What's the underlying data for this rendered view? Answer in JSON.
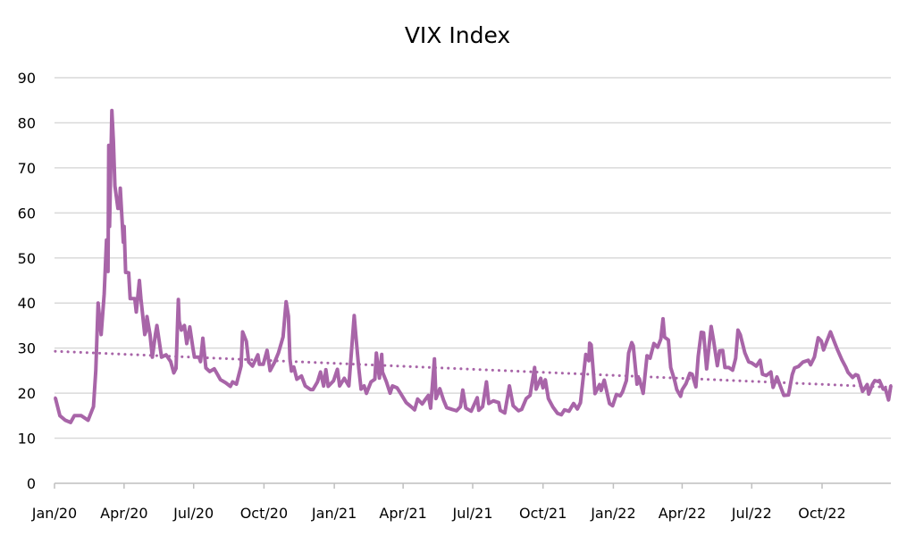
{
  "chart_data": {
    "type": "line",
    "title": "VIX Index",
    "xlabel": "",
    "ylabel": "",
    "ylim": [
      0,
      90
    ],
    "yticks": [
      "0",
      "10",
      "20",
      "30",
      "40",
      "50",
      "60",
      "70",
      "80",
      "90"
    ],
    "xlim": [
      "2020-01-01",
      "2022-12-30"
    ],
    "xticks": [
      {
        "date": "2020-01-01",
        "label": "Jan/20"
      },
      {
        "date": "2020-04-01",
        "label": "Apr/20"
      },
      {
        "date": "2020-07-01",
        "label": "Jul/20"
      },
      {
        "date": "2020-10-01",
        "label": "Oct/20"
      },
      {
        "date": "2021-01-01",
        "label": "Jan/21"
      },
      {
        "date": "2021-04-01",
        "label": "Apr/21"
      },
      {
        "date": "2021-07-01",
        "label": "Jul/21"
      },
      {
        "date": "2021-10-01",
        "label": "Oct/21"
      },
      {
        "date": "2022-01-01",
        "label": "Jan/22"
      },
      {
        "date": "2022-04-01",
        "label": "Apr/22"
      },
      {
        "date": "2022-07-01",
        "label": "Jul/22"
      },
      {
        "date": "2022-10-01",
        "label": "Oct/22"
      }
    ],
    "grid": true,
    "legend": "none",
    "color": "#a865a8",
    "grid_color": "#d9d9d9",
    "trendline": {
      "type": "linear",
      "style": "dotted",
      "start_value": 29.3,
      "end_value": 21.3
    },
    "series": [
      {
        "points": [
          [
            "2020-01-02",
            19
          ],
          [
            "2020-01-08",
            15
          ],
          [
            "2020-01-15",
            14
          ],
          [
            "2020-01-22",
            13.5
          ],
          [
            "2020-01-27",
            15
          ],
          [
            "2020-02-05",
            15
          ],
          [
            "2020-02-14",
            14
          ],
          [
            "2020-02-21",
            17
          ],
          [
            "2020-02-24",
            25
          ],
          [
            "2020-02-27",
            40
          ],
          [
            "2020-03-02",
            33
          ],
          [
            "2020-03-06",
            42
          ],
          [
            "2020-03-09",
            54
          ],
          [
            "2020-03-11",
            47
          ],
          [
            "2020-03-12",
            75
          ],
          [
            "2020-03-13",
            57
          ],
          [
            "2020-03-16",
            82.7
          ],
          [
            "2020-03-18",
            76
          ],
          [
            "2020-03-20",
            66
          ],
          [
            "2020-03-24",
            61
          ],
          [
            "2020-03-26",
            61
          ],
          [
            "2020-03-27",
            65.5
          ],
          [
            "2020-03-31",
            53.5
          ],
          [
            "2020-04-01",
            57
          ],
          [
            "2020-04-03",
            46.8
          ],
          [
            "2020-04-07",
            46.7
          ],
          [
            "2020-04-09",
            41
          ],
          [
            "2020-04-15",
            41
          ],
          [
            "2020-04-17",
            38
          ],
          [
            "2020-04-21",
            45
          ],
          [
            "2020-04-23",
            41
          ],
          [
            "2020-04-28",
            33
          ],
          [
            "2020-04-30",
            34
          ],
          [
            "2020-05-01",
            37
          ],
          [
            "2020-05-05",
            33
          ],
          [
            "2020-05-08",
            28
          ],
          [
            "2020-05-12",
            33
          ],
          [
            "2020-05-14",
            35
          ],
          [
            "2020-05-20",
            28
          ],
          [
            "2020-05-26",
            28.5
          ],
          [
            "2020-06-01",
            27
          ],
          [
            "2020-06-05",
            24.5
          ],
          [
            "2020-06-08",
            25.5
          ],
          [
            "2020-06-11",
            40.8
          ],
          [
            "2020-06-12",
            36
          ],
          [
            "2020-06-15",
            34
          ],
          [
            "2020-06-19",
            35
          ],
          [
            "2020-06-22",
            31
          ],
          [
            "2020-06-26",
            34.7
          ],
          [
            "2020-06-30",
            30
          ],
          [
            "2020-07-02",
            28
          ],
          [
            "2020-07-08",
            28
          ],
          [
            "2020-07-10",
            27
          ],
          [
            "2020-07-13",
            32.2
          ],
          [
            "2020-07-17",
            25.6
          ],
          [
            "2020-07-22",
            24.8
          ],
          [
            "2020-07-28",
            25.4
          ],
          [
            "2020-07-31",
            24.5
          ],
          [
            "2020-08-05",
            23
          ],
          [
            "2020-08-12",
            22.3
          ],
          [
            "2020-08-18",
            21.5
          ],
          [
            "2020-08-21",
            22.5
          ],
          [
            "2020-08-26",
            22
          ],
          [
            "2020-09-01",
            26
          ],
          [
            "2020-09-03",
            33.6
          ],
          [
            "2020-09-08",
            31.5
          ],
          [
            "2020-09-11",
            26.9
          ],
          [
            "2020-09-16",
            26
          ],
          [
            "2020-09-21",
            27.8
          ],
          [
            "2020-09-23",
            28.5
          ],
          [
            "2020-09-25",
            26.4
          ],
          [
            "2020-09-30",
            26.4
          ],
          [
            "2020-10-05",
            29.5
          ],
          [
            "2020-10-09",
            25
          ],
          [
            "2020-10-15",
            26.9
          ],
          [
            "2020-10-20",
            29
          ],
          [
            "2020-10-26",
            32.5
          ],
          [
            "2020-10-30",
            40.3
          ],
          [
            "2020-11-02",
            37.1
          ],
          [
            "2020-11-04",
            27.6
          ],
          [
            "2020-11-06",
            24.9
          ],
          [
            "2020-11-09",
            25.8
          ],
          [
            "2020-11-13",
            23.1
          ],
          [
            "2020-11-19",
            23.8
          ],
          [
            "2020-11-24",
            21.6
          ],
          [
            "2020-12-01",
            20.8
          ],
          [
            "2020-12-04",
            20.8
          ],
          [
            "2020-12-10",
            22.5
          ],
          [
            "2020-12-14",
            24.7
          ],
          [
            "2020-12-18",
            21.6
          ],
          [
            "2020-12-21",
            25.2
          ],
          [
            "2020-12-24",
            21.5
          ],
          [
            "2020-12-31",
            22.75
          ],
          [
            "2021-01-05",
            25.3
          ],
          [
            "2021-01-08",
            21.6
          ],
          [
            "2021-01-14",
            23.3
          ],
          [
            "2021-01-20",
            21.6
          ],
          [
            "2021-01-27",
            37.2
          ],
          [
            "2021-01-29",
            33.1
          ],
          [
            "2021-02-02",
            25.6
          ],
          [
            "2021-02-05",
            20.9
          ],
          [
            "2021-02-09",
            21.6
          ],
          [
            "2021-02-12",
            19.97
          ],
          [
            "2021-02-18",
            22.5
          ],
          [
            "2021-02-23",
            23.1
          ],
          [
            "2021-02-25",
            28.9
          ],
          [
            "2021-03-01",
            23.35
          ],
          [
            "2021-03-04",
            28.6
          ],
          [
            "2021-03-05",
            24.7
          ],
          [
            "2021-03-10",
            22.6
          ],
          [
            "2021-03-15",
            20
          ],
          [
            "2021-03-18",
            21.6
          ],
          [
            "2021-03-24",
            21.2
          ],
          [
            "2021-03-30",
            19.6
          ],
          [
            "2021-04-05",
            17.9
          ],
          [
            "2021-04-12",
            16.9
          ],
          [
            "2021-04-16",
            16.3
          ],
          [
            "2021-04-20",
            18.7
          ],
          [
            "2021-04-26",
            17.6
          ],
          [
            "2021-04-30",
            18.6
          ],
          [
            "2021-05-04",
            19.5
          ],
          [
            "2021-05-07",
            16.7
          ],
          [
            "2021-05-12",
            27.6
          ],
          [
            "2021-05-14",
            18.8
          ],
          [
            "2021-05-19",
            21
          ],
          [
            "2021-05-24",
            18.4
          ],
          [
            "2021-05-28",
            16.8
          ],
          [
            "2021-06-04",
            16.4
          ],
          [
            "2021-06-10",
            16.1
          ],
          [
            "2021-06-15",
            17
          ],
          [
            "2021-06-18",
            20.7
          ],
          [
            "2021-06-22",
            16.7
          ],
          [
            "2021-06-29",
            16
          ],
          [
            "2021-07-07",
            19
          ],
          [
            "2021-07-09",
            16.2
          ],
          [
            "2021-07-14",
            17
          ],
          [
            "2021-07-19",
            22.5
          ],
          [
            "2021-07-22",
            17.7
          ],
          [
            "2021-07-28",
            18.3
          ],
          [
            "2021-08-04",
            17.9
          ],
          [
            "2021-08-06",
            16.2
          ],
          [
            "2021-08-12",
            15.6
          ],
          [
            "2021-08-18",
            21.6
          ],
          [
            "2021-08-23",
            17.2
          ],
          [
            "2021-08-30",
            16.1
          ],
          [
            "2021-09-03",
            16.4
          ],
          [
            "2021-09-09",
            18.8
          ],
          [
            "2021-09-14",
            19.5
          ],
          [
            "2021-09-20",
            25.7
          ],
          [
            "2021-09-22",
            20.9
          ],
          [
            "2021-09-28",
            23.3
          ],
          [
            "2021-10-01",
            21.2
          ],
          [
            "2021-10-04",
            22.96
          ],
          [
            "2021-10-08",
            18.8
          ],
          [
            "2021-10-14",
            16.9
          ],
          [
            "2021-10-20",
            15.5
          ],
          [
            "2021-10-25",
            15.2
          ],
          [
            "2021-10-29",
            16.3
          ],
          [
            "2021-11-04",
            16
          ],
          [
            "2021-11-10",
            17.7
          ],
          [
            "2021-11-15",
            16.5
          ],
          [
            "2021-11-19",
            17.9
          ],
          [
            "2021-11-26",
            28.6
          ],
          [
            "2021-11-30",
            27.2
          ],
          [
            "2021-12-01",
            31.1
          ],
          [
            "2021-12-03",
            30.7
          ],
          [
            "2021-12-08",
            19.9
          ],
          [
            "2021-12-14",
            21.9
          ],
          [
            "2021-12-16",
            20.6
          ],
          [
            "2021-12-20",
            22.9
          ],
          [
            "2021-12-27",
            17.7
          ],
          [
            "2021-12-31",
            17.2
          ],
          [
            "2022-01-05",
            19.7
          ],
          [
            "2022-01-10",
            19.4
          ],
          [
            "2022-01-13",
            20.3
          ],
          [
            "2022-01-18",
            22.8
          ],
          [
            "2022-01-21",
            28.9
          ],
          [
            "2022-01-25",
            31.2
          ],
          [
            "2022-01-27",
            30.5
          ],
          [
            "2022-02-01",
            22
          ],
          [
            "2022-02-04",
            23.2
          ],
          [
            "2022-02-09",
            19.96
          ],
          [
            "2022-02-14",
            28.3
          ],
          [
            "2022-02-18",
            27.75
          ],
          [
            "2022-02-23",
            31
          ],
          [
            "2022-02-28",
            30.2
          ],
          [
            "2022-03-04",
            31.98
          ],
          [
            "2022-03-07",
            36.5
          ],
          [
            "2022-03-09",
            32.45
          ],
          [
            "2022-03-14",
            31.8
          ],
          [
            "2022-03-17",
            25.7
          ],
          [
            "2022-03-22",
            22.9
          ],
          [
            "2022-03-25",
            20.8
          ],
          [
            "2022-03-30",
            19.3
          ],
          [
            "2022-04-01",
            20.75
          ],
          [
            "2022-04-06",
            22.1
          ],
          [
            "2022-04-11",
            24.4
          ],
          [
            "2022-04-14",
            24.2
          ],
          [
            "2022-04-19",
            21.4
          ],
          [
            "2022-04-22",
            28.2
          ],
          [
            "2022-04-26",
            33.5
          ],
          [
            "2022-04-29",
            33.4
          ],
          [
            "2022-05-03",
            25.4
          ],
          [
            "2022-05-06",
            30.2
          ],
          [
            "2022-05-09",
            34.8
          ],
          [
            "2022-05-12",
            31.8
          ],
          [
            "2022-05-17",
            26.1
          ],
          [
            "2022-05-20",
            29.4
          ],
          [
            "2022-05-24",
            29.45
          ],
          [
            "2022-05-27",
            25.7
          ],
          [
            "2022-06-01",
            25.7
          ],
          [
            "2022-06-06",
            25.1
          ],
          [
            "2022-06-10",
            27.75
          ],
          [
            "2022-06-13",
            34
          ],
          [
            "2022-06-16",
            32.95
          ],
          [
            "2022-06-22",
            28.95
          ],
          [
            "2022-06-27",
            26.95
          ],
          [
            "2022-07-01",
            26.7
          ],
          [
            "2022-07-07",
            26
          ],
          [
            "2022-07-12",
            27.3
          ],
          [
            "2022-07-15",
            24.2
          ],
          [
            "2022-07-20",
            23.9
          ],
          [
            "2022-07-26",
            24.7
          ],
          [
            "2022-07-29",
            21.3
          ],
          [
            "2022-08-03",
            23.6
          ],
          [
            "2022-08-08",
            21.3
          ],
          [
            "2022-08-12",
            19.5
          ],
          [
            "2022-08-18",
            19.6
          ],
          [
            "2022-08-23",
            24.1
          ],
          [
            "2022-08-26",
            25.6
          ],
          [
            "2022-08-31",
            25.9
          ],
          [
            "2022-09-06",
            26.9
          ],
          [
            "2022-09-13",
            27.3
          ],
          [
            "2022-09-16",
            26.3
          ],
          [
            "2022-09-21",
            27.99
          ],
          [
            "2022-09-26",
            32.3
          ],
          [
            "2022-09-30",
            31.6
          ],
          [
            "2022-10-03",
            29.6
          ],
          [
            "2022-10-07",
            31.4
          ],
          [
            "2022-10-12",
            33.6
          ],
          [
            "2022-10-17",
            31.4
          ],
          [
            "2022-10-21",
            29.7
          ],
          [
            "2022-10-27",
            27.4
          ],
          [
            "2022-11-01",
            25.8
          ],
          [
            "2022-11-04",
            24.6
          ],
          [
            "2022-11-10",
            23.5
          ],
          [
            "2022-11-14",
            24.1
          ],
          [
            "2022-11-17",
            23.9
          ],
          [
            "2022-11-23",
            20.4
          ],
          [
            "2022-11-29",
            21.9
          ],
          [
            "2022-12-01",
            19.8
          ],
          [
            "2022-12-06",
            22
          ],
          [
            "2022-12-09",
            22.8
          ],
          [
            "2022-12-13",
            22.6
          ],
          [
            "2022-12-15",
            22.8
          ],
          [
            "2022-12-20",
            20.9
          ],
          [
            "2022-12-23",
            20.9
          ],
          [
            "2022-12-27",
            18.5
          ],
          [
            "2022-12-30",
            21.7
          ]
        ]
      }
    ]
  }
}
